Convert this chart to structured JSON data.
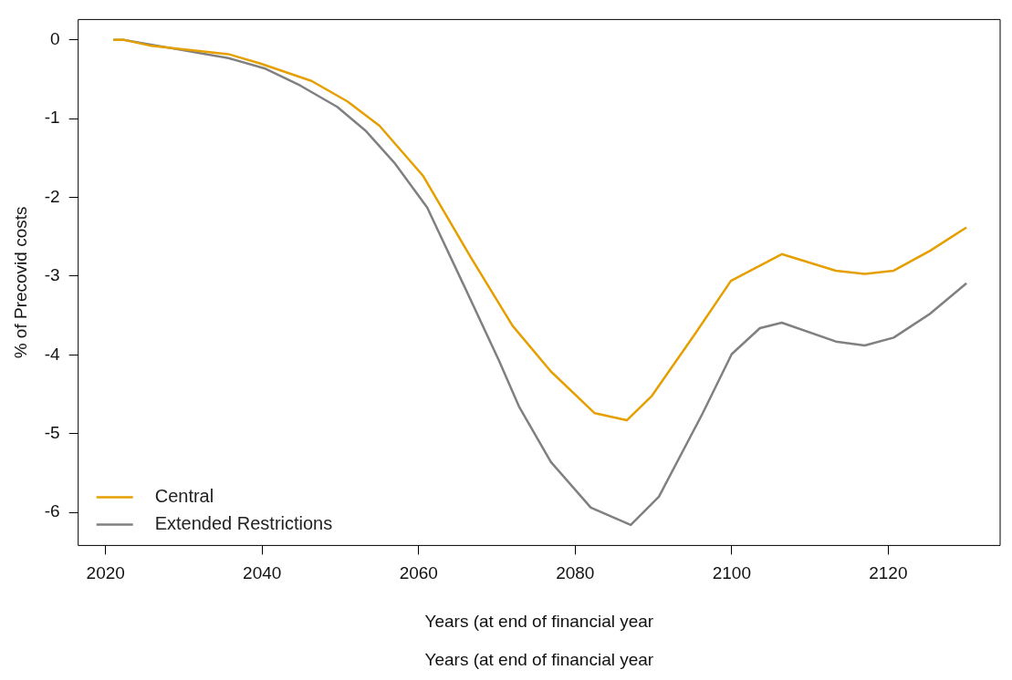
{
  "chart_data": {
    "type": "line",
    "xlabel": "Years (at end of financial year",
    "ylabel": "% of Precovid costs",
    "annotations": [
      "Years (at end of financial year"
    ],
    "xlim": [
      2016.5,
      2134.3
    ],
    "ylim": [
      -6.42,
      0.26
    ],
    "xticks": [
      2020,
      2040,
      2060,
      2080,
      2100,
      2120
    ],
    "yticks": [
      -6,
      -5,
      -4,
      -3,
      -2,
      -1,
      0
    ],
    "grid": false,
    "legend": "bottom left",
    "line_style": "solid",
    "series": [
      {
        "name": "Central",
        "color": "#e69f00",
        "x": [
          2021,
          2022.4,
          2025.6,
          2035.7,
          2039.8,
          2046.3,
          2050.9,
          2055,
          2060.6,
          2066.6,
          2072,
          2076.9,
          2082.5,
          2086.6,
          2089.8,
          2095.4,
          2099.9,
          2106.4,
          2113.3,
          2117,
          2120.7,
          2125.3,
          2130
        ],
        "values": [
          0,
          0,
          -0.07,
          -0.18,
          -0.3,
          -0.52,
          -0.78,
          -1.09,
          -1.73,
          -2.75,
          -3.63,
          -4.21,
          -4.74,
          -4.83,
          -4.52,
          -3.72,
          -3.06,
          -2.72,
          -2.93,
          -2.97,
          -2.93,
          -2.68,
          -2.38
        ]
      },
      {
        "name": "Extended Restrictions",
        "color": "#808080",
        "x": [
          2021,
          2022.4,
          2035.7,
          2040.3,
          2044.9,
          2049.6,
          2053.3,
          2056.9,
          2061.1,
          2065.7,
          2070.3,
          2072.8,
          2076.9,
          2082,
          2087.1,
          2090.7,
          2096.3,
          2100,
          2103.6,
          2106.4,
          2113.3,
          2117,
          2120.7,
          2125.3,
          2130
        ],
        "values": [
          0,
          0,
          -0.23,
          -0.36,
          -0.58,
          -0.85,
          -1.16,
          -1.56,
          -2.13,
          -3.1,
          -4.08,
          -4.65,
          -5.36,
          -5.94,
          -6.16,
          -5.8,
          -4.74,
          -3.99,
          -3.66,
          -3.59,
          -3.83,
          -3.88,
          -3.78,
          -3.48,
          -3.09
        ]
      }
    ]
  }
}
